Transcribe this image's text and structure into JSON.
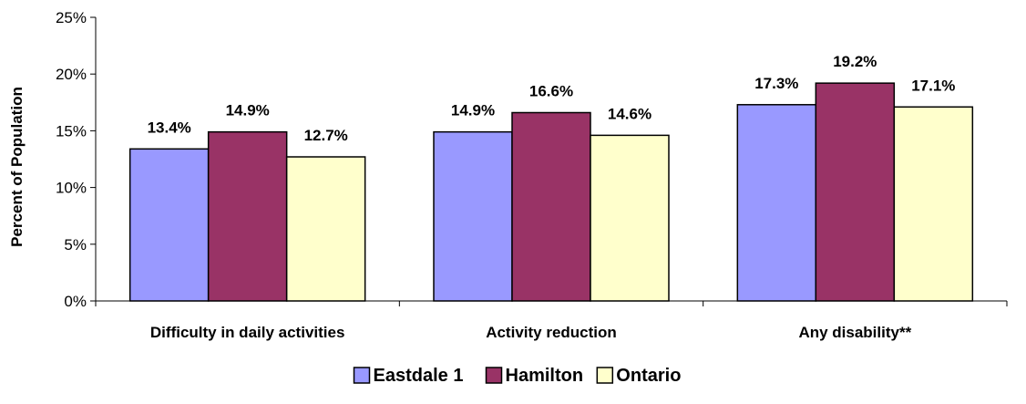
{
  "chart_data": {
    "type": "bar",
    "ylabel": "Percent of Population",
    "ylim": [
      0,
      25
    ],
    "yticks": [
      0,
      5,
      10,
      15,
      20,
      25
    ],
    "ytick_suffix": "%",
    "categories": [
      "Difficulty in daily activities",
      "Activity reduction",
      "Any disability**"
    ],
    "series": [
      {
        "name": "Eastdale 1",
        "color": "#9999ff",
        "values": [
          13.4,
          14.9,
          17.3
        ],
        "labels": [
          "13.4%",
          "14.9%",
          "17.3%"
        ]
      },
      {
        "name": "Hamilton",
        "color": "#993366",
        "values": [
          14.9,
          16.6,
          19.2
        ],
        "labels": [
          "14.9%",
          "16.6%",
          "19.2%"
        ]
      },
      {
        "name": "Ontario",
        "color": "#ffffcc",
        "values": [
          12.7,
          14.6,
          17.1
        ],
        "labels": [
          "12.7%",
          "14.6%",
          "17.1%"
        ]
      }
    ],
    "legend_position": "bottom",
    "grid": false
  }
}
